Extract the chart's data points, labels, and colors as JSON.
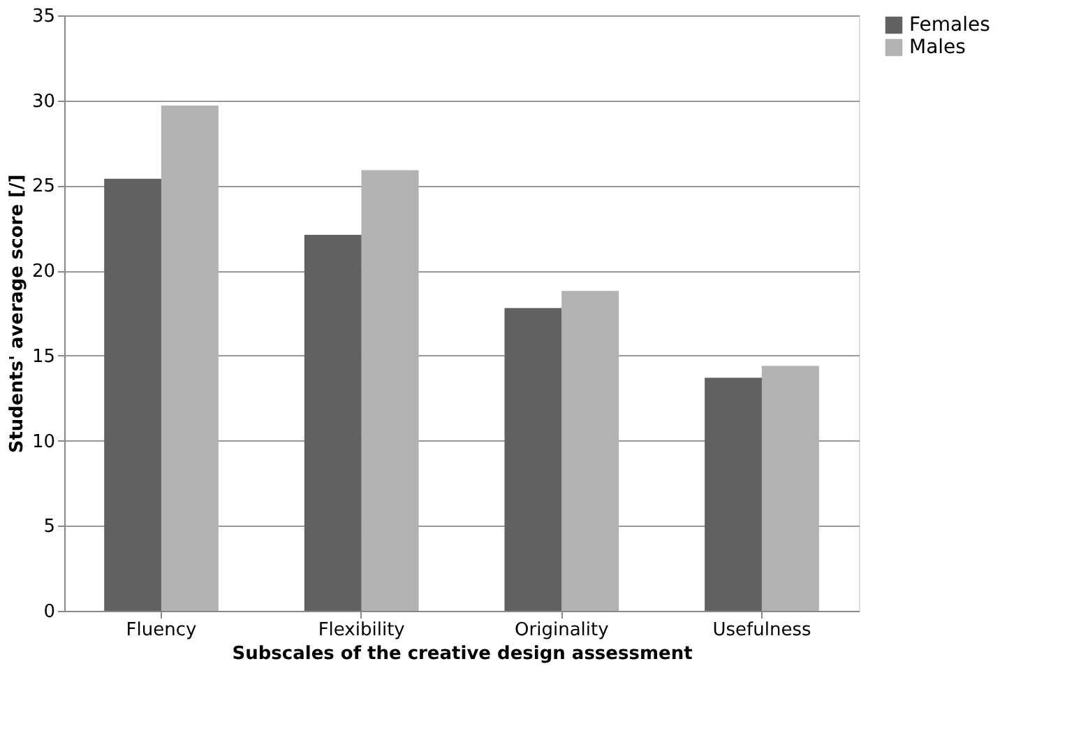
{
  "chart_data": {
    "type": "bar",
    "xlabel": "Subscales of the creative design assessment",
    "ylabel": "Students' average score [/]",
    "categories": [
      "Fluency",
      "Flexibility",
      "Originality",
      "Usefulness"
    ],
    "series": [
      {
        "name": "Females",
        "color": "#616161",
        "values": [
          25.4,
          22.1,
          17.8,
          13.7
        ]
      },
      {
        "name": "Males",
        "color": "#b2b2b2",
        "values": [
          29.7,
          25.9,
          18.8,
          14.4
        ]
      }
    ],
    "ylim": [
      0,
      35
    ],
    "yticks": [
      0,
      5,
      10,
      15,
      20,
      25,
      30,
      35
    ],
    "grid": "y",
    "legend": "right"
  }
}
